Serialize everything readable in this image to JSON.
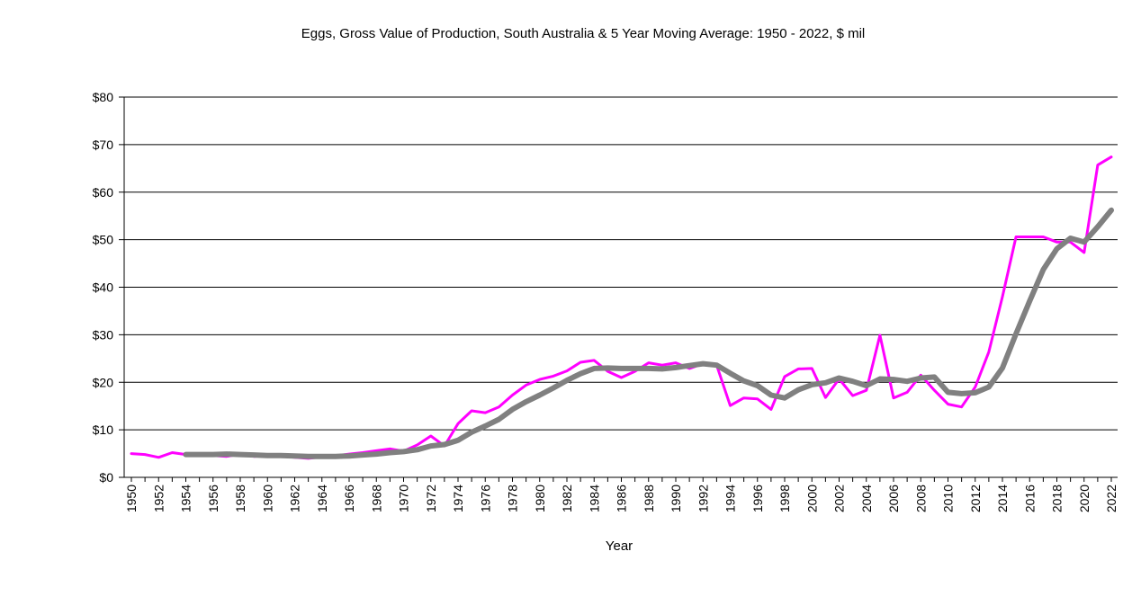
{
  "chart_data": {
    "type": "line",
    "title": "Eggs, Gross Value of Production, South Australia & 5 Year Moving Average: 1950 - 2022, $ mil",
    "xlabel": "Year",
    "ylabel": "",
    "ylim": [
      0,
      80
    ],
    "y_ticks": [
      "$0",
      "$10",
      "$20",
      "$30",
      "$40",
      "$50",
      "$60",
      "$70",
      "$80"
    ],
    "y_tick_values": [
      0,
      10,
      20,
      30,
      40,
      50,
      60,
      70,
      80
    ],
    "x_ticks": [
      "1950",
      "1952",
      "1954",
      "1956",
      "1958",
      "1960",
      "1962",
      "1964",
      "1966",
      "1968",
      "1970",
      "1972",
      "1974",
      "1976",
      "1978",
      "1980",
      "1982",
      "1984",
      "1986",
      "1988",
      "1990",
      "1992",
      "1994",
      "1996",
      "1998",
      "2000",
      "2002",
      "2004",
      "2006",
      "2008",
      "2010",
      "2012",
      "2014",
      "2016",
      "2018",
      "2020",
      "2022"
    ],
    "x_start": 1950,
    "x_end": 2022,
    "grid": true,
    "series": [
      {
        "name": "Gross Value of Production",
        "color": "#ff00ff",
        "start_year": 1950,
        "values": [
          5.0,
          4.8,
          4.2,
          5.2,
          4.8,
          4.8,
          4.6,
          4.4,
          4.9,
          4.4,
          4.6,
          4.5,
          4.2,
          4.0,
          4.3,
          4.5,
          4.9,
          5.2,
          5.6,
          6.0,
          5.5,
          6.8,
          8.7,
          6.6,
          11.3,
          14.0,
          13.6,
          14.8,
          17.3,
          19.4,
          20.6,
          21.3,
          22.4,
          24.2,
          24.6,
          22.3,
          21.0,
          22.3,
          24.1,
          23.6,
          24.1,
          22.9,
          23.9,
          23.6,
          15.1,
          16.7,
          16.5,
          14.3,
          21.2,
          22.8,
          22.9,
          16.8,
          20.7,
          17.2,
          18.3,
          29.9,
          16.7,
          17.9,
          21.5,
          18.3,
          15.4,
          14.8,
          19.0,
          26.4,
          38.0,
          50.6,
          50.6,
          50.6,
          49.5,
          49.5,
          47.3,
          65.7,
          67.4
        ]
      },
      {
        "name": "5 Year Moving Average",
        "color": "#808080",
        "start_year": 1954,
        "values": [
          4.8,
          4.8,
          4.8,
          4.9,
          4.8,
          4.7,
          4.6,
          4.6,
          4.5,
          4.4,
          4.4,
          4.4,
          4.5,
          4.7,
          4.9,
          5.2,
          5.4,
          5.8,
          6.6,
          6.9,
          7.8,
          9.5,
          10.8,
          12.2,
          14.3,
          15.9,
          17.3,
          18.8,
          20.4,
          21.8,
          22.9,
          23.0,
          22.9,
          22.9,
          22.9,
          22.8,
          23.1,
          23.5,
          23.9,
          23.6,
          21.9,
          20.3,
          19.3,
          17.3,
          16.7,
          18.4,
          19.5,
          19.9,
          20.9,
          20.2,
          19.3,
          20.7,
          20.6,
          20.2,
          20.9,
          21.1,
          17.9,
          17.6,
          17.8,
          19.0,
          23.0,
          30.2,
          37.1,
          43.7,
          48.1,
          50.3,
          49.5,
          52.7,
          56.2
        ]
      }
    ]
  }
}
